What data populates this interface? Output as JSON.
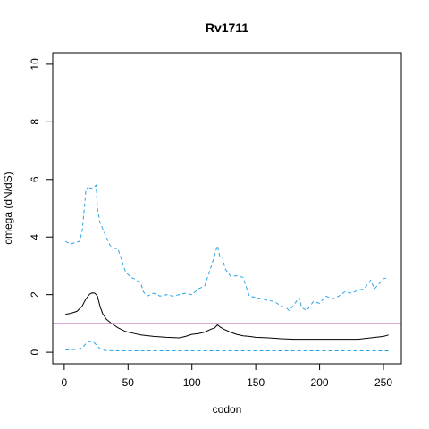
{
  "chart_data": {
    "type": "line",
    "title": "Rv1711",
    "xlabel": "codon",
    "ylabel": "omega (dN/dS)",
    "xlim": [
      -9,
      264
    ],
    "ylim": [
      -0.4,
      10.4
    ],
    "xticks": [
      0,
      50,
      100,
      150,
      200,
      250
    ],
    "yticks": [
      0,
      2,
      4,
      6,
      8,
      10
    ],
    "grid": false,
    "legend": "none",
    "reference_line": {
      "y": 1,
      "color": "#c77cc8"
    },
    "series": [
      {
        "role": "upper",
        "style": "dashed",
        "color": "#29a3e6",
        "x": [
          1,
          5,
          8,
          12,
          14,
          16,
          17,
          18,
          19,
          20,
          22,
          25,
          26,
          28,
          30,
          33,
          36,
          40,
          42,
          45,
          48,
          52,
          55,
          60,
          62,
          65,
          70,
          75,
          80,
          85,
          90,
          95,
          100,
          105,
          110,
          113,
          116,
          118,
          120,
          122,
          124,
          126,
          130,
          135,
          140,
          145,
          150,
          155,
          160,
          165,
          170,
          174,
          176,
          180,
          184,
          186,
          190,
          195,
          200,
          205,
          210,
          215,
          220,
          225,
          230,
          235,
          240,
          243,
          246,
          250,
          254
        ],
        "y": [
          3.85,
          3.75,
          3.8,
          3.85,
          4.2,
          5.1,
          5.65,
          5.7,
          5.6,
          5.7,
          5.7,
          5.8,
          5.0,
          4.5,
          4.3,
          4.0,
          3.7,
          3.6,
          3.6,
          3.2,
          2.8,
          2.6,
          2.55,
          2.4,
          2.1,
          1.95,
          2.05,
          1.95,
          2.0,
          1.95,
          2.0,
          2.05,
          2.0,
          2.2,
          2.3,
          2.7,
          3.1,
          3.4,
          3.7,
          3.3,
          3.3,
          2.9,
          2.65,
          2.65,
          2.6,
          1.95,
          1.9,
          1.85,
          1.8,
          1.75,
          1.6,
          1.55,
          1.45,
          1.65,
          1.9,
          1.55,
          1.45,
          1.75,
          1.7,
          1.95,
          1.85,
          1.95,
          2.1,
          2.05,
          2.15,
          2.2,
          2.5,
          2.2,
          2.35,
          2.55,
          2.6
        ]
      },
      {
        "role": "median",
        "style": "solid",
        "color": "#000000",
        "x": [
          1,
          5,
          10,
          14,
          17,
          20,
          22,
          24,
          26,
          28,
          30,
          33,
          37,
          42,
          48,
          55,
          60,
          70,
          80,
          90,
          95,
          100,
          105,
          110,
          115,
          118,
          120,
          122,
          125,
          130,
          135,
          140,
          145,
          150,
          160,
          170,
          180,
          190,
          200,
          210,
          220,
          230,
          240,
          250,
          254
        ],
        "y": [
          1.32,
          1.35,
          1.42,
          1.6,
          1.85,
          2.02,
          2.06,
          2.05,
          1.95,
          1.6,
          1.35,
          1.15,
          1.0,
          0.85,
          0.72,
          0.65,
          0.6,
          0.55,
          0.52,
          0.5,
          0.55,
          0.62,
          0.65,
          0.7,
          0.8,
          0.85,
          0.95,
          0.88,
          0.8,
          0.7,
          0.62,
          0.57,
          0.55,
          0.52,
          0.5,
          0.47,
          0.45,
          0.45,
          0.45,
          0.45,
          0.45,
          0.45,
          0.5,
          0.55,
          0.6
        ]
      },
      {
        "role": "lower",
        "style": "dashed",
        "color": "#29a3e6",
        "x": [
          1,
          10,
          14,
          17,
          20,
          23,
          26,
          28,
          32,
          40,
          50,
          100,
          150,
          200,
          254
        ],
        "y": [
          0.08,
          0.1,
          0.15,
          0.3,
          0.38,
          0.35,
          0.22,
          0.12,
          0.06,
          0.05,
          0.05,
          0.05,
          0.05,
          0.05,
          0.05
        ]
      }
    ]
  }
}
